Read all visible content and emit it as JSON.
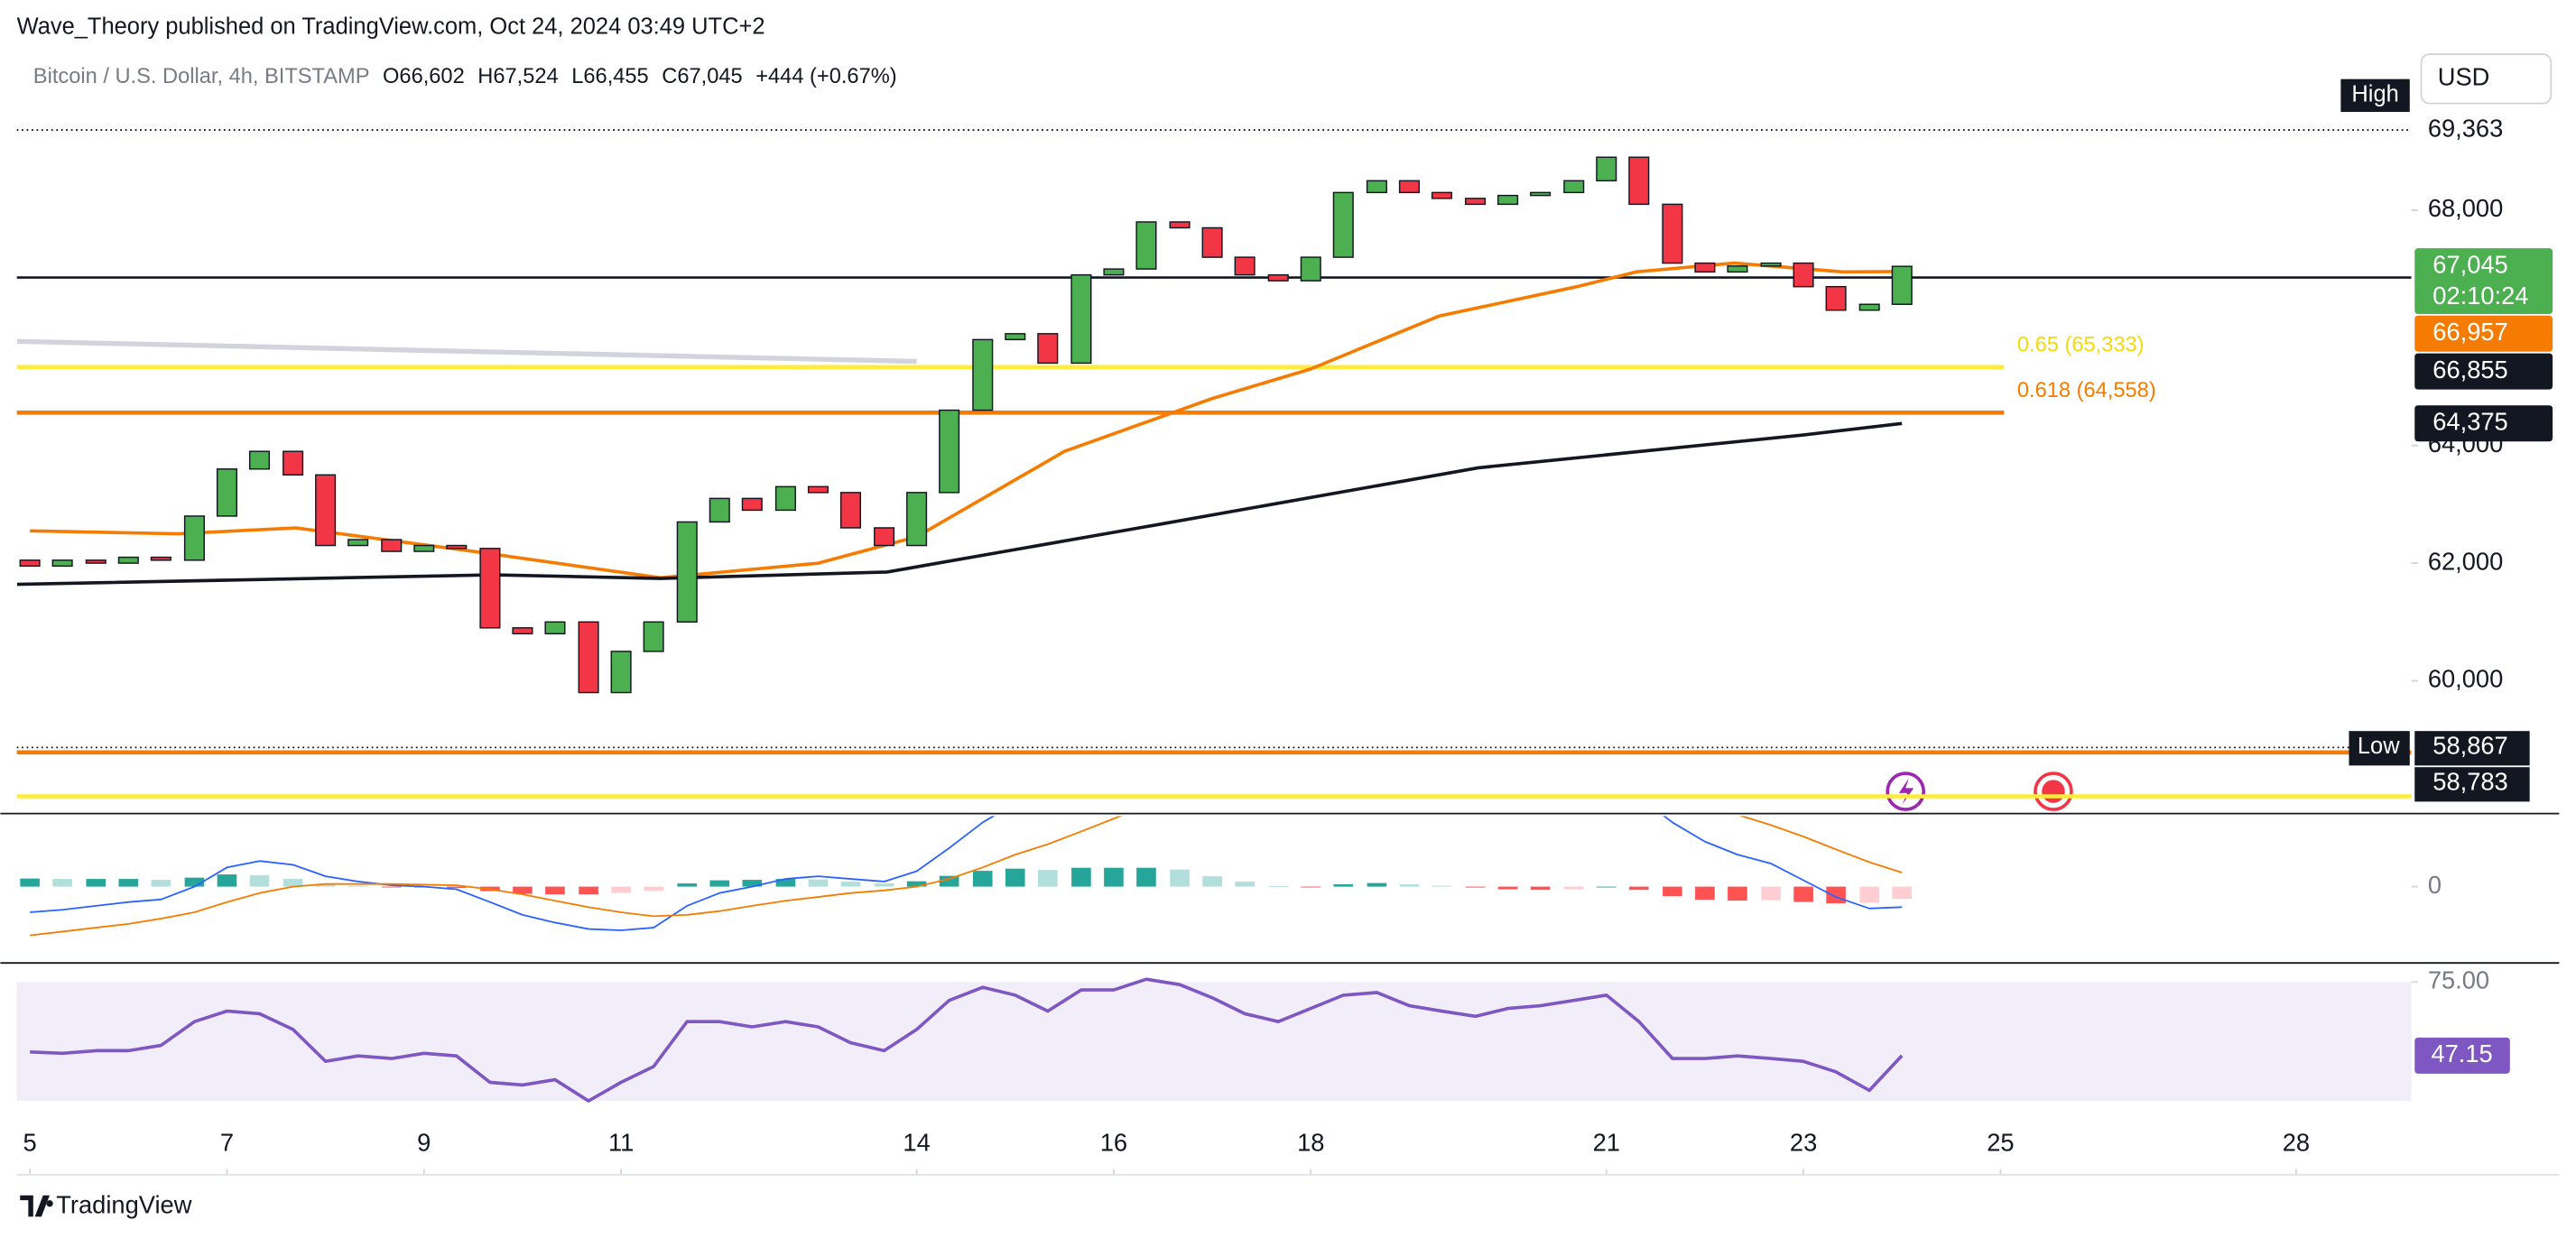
{
  "header": {
    "publisher": "Wave_Theory published on TradingView.com, Oct 24, 2024 03:49 UTC+2"
  },
  "footer": {
    "brand": "TradingView"
  },
  "chart_data": [
    {
      "type": "candlestick",
      "title": "Bitcoin / U.S. Dollar, 4h, BITSTAMP",
      "ohlc_labels": [
        "O66,602",
        "H67,524",
        "L66,455",
        "C67,045",
        "+444 (+0.67%)"
      ],
      "currency": "USD",
      "xlim": [
        4.867,
        29.17
      ],
      "xticks": [
        5,
        7,
        9,
        11,
        14,
        16,
        18,
        21,
        23,
        25,
        28
      ],
      "ylim": [
        57757,
        69898
      ],
      "yticks": [
        {
          "value": 60000,
          "label": "60,000"
        },
        {
          "value": 62000,
          "label": "62,000"
        },
        {
          "value": 64000,
          "label": "64,000"
        },
        {
          "value": 68000,
          "label": "68,000"
        }
      ],
      "grid": false,
      "up_color": "#4caf50",
      "down_color": "#f23645",
      "x": [
        5,
        5.33,
        5.67,
        6,
        6.33,
        6.67,
        7,
        7.33,
        7.67,
        8,
        8.33,
        8.67,
        9,
        9.33,
        9.67,
        10,
        10.33,
        10.67,
        11,
        11.33,
        11.67,
        12,
        12.33,
        12.67,
        13,
        13.33,
        13.67,
        14,
        14.33,
        14.67,
        15,
        15.33,
        15.67,
        16,
        16.33,
        16.67,
        17,
        17.33,
        17.67,
        18,
        18.33,
        18.67,
        19,
        19.33,
        19.67,
        20,
        20.33,
        20.67,
        21,
        21.33,
        21.67,
        22,
        22.33,
        22.67,
        23,
        23.33,
        23.67,
        24
      ],
      "open": [
        62050,
        61950,
        62050,
        62000,
        62100,
        62050,
        62800,
        63600,
        63900,
        63500,
        62300,
        62400,
        62200,
        62300,
        62250,
        60900,
        60800,
        61000,
        59800,
        60500,
        61000,
        62700,
        63100,
        62900,
        63300,
        63200,
        62600,
        62300,
        63200,
        64600,
        65800,
        65900,
        65400,
        66900,
        67000,
        67800,
        67700,
        67200,
        66900,
        66800,
        67200,
        68300,
        68500,
        68300,
        68200,
        68100,
        68250,
        68300,
        68500,
        68900,
        68100,
        67100,
        66950,
        67050,
        67100,
        66700,
        66300,
        66400
      ],
      "high": {
        "name": "High",
        "value": 69363,
        "label": "69,363"
      },
      "low": {
        "name": "Low",
        "value": 58867,
        "label": "58,867"
      },
      "close": [
        61950,
        62050,
        62000,
        62100,
        62050,
        62800,
        63600,
        63900,
        63500,
        62300,
        62400,
        62200,
        62300,
        62250,
        60900,
        60800,
        61000,
        59800,
        60500,
        61000,
        62700,
        63100,
        62900,
        63300,
        63200,
        62600,
        62300,
        63200,
        64600,
        65800,
        65900,
        65400,
        66900,
        67000,
        67800,
        67700,
        67200,
        66900,
        66800,
        67200,
        68300,
        68500,
        68300,
        68200,
        68100,
        68250,
        68300,
        68500,
        68900,
        68100,
        67100,
        66950,
        67050,
        67100,
        66700,
        66300,
        66400,
        67045
      ],
      "series": [
        {
          "color": "#f57c00",
          "x": [
            5,
            6.5,
            7.7,
            9.5,
            11.4,
            13,
            14,
            15.5,
            17,
            18,
            19.3,
            20.7,
            21.3,
            22.3,
            23.4,
            24
          ],
          "values": [
            62550,
            62500,
            62600,
            62200,
            61750,
            62000,
            62450,
            63900,
            64800,
            65300,
            66200,
            66700,
            66950,
            67100,
            66950,
            66957
          ]
        },
        {
          "color": "#131722",
          "x": [
            4.87,
            9.7,
            11.4,
            13.7,
            16.4,
            19.7,
            23,
            24
          ],
          "values": [
            61640,
            61800,
            61740,
            61850,
            62640,
            63620,
            64180,
            64375
          ]
        },
        {
          "color": "#d1d4dc",
          "x": [
            4.87,
            14
          ],
          "values": [
            65770,
            65430
          ]
        }
      ],
      "levels": [
        {
          "value": 66855,
          "color": "#131722"
        },
        {
          "value": 65333,
          "color": "#ffeb3b",
          "label": "0.65 (65,333)"
        },
        {
          "value": 64558,
          "color": "#f57c00",
          "label": "0.618 (64,558)"
        },
        {
          "value": 58783,
          "color": "#f57c00"
        },
        {
          "value": 58036,
          "color": "#ffeb3b"
        }
      ],
      "last_price": {
        "value": 67045,
        "label": "67,045",
        "countdown": "02:10:24",
        "color": "#4caf50"
      },
      "price_tags": [
        {
          "value": 66957,
          "label": "66,957",
          "color": "#f57c00"
        },
        {
          "value": 66855,
          "label": "66,855",
          "color": "#131722"
        },
        {
          "value": 64375,
          "label": "64,375",
          "color": "#131722"
        }
      ],
      "low_tag": {
        "value": 58783,
        "label": "58,783"
      }
    },
    {
      "type": "macd",
      "ylim": [
        -550,
        550
      ],
      "yticks": [
        0
      ],
      "macd_color": "#2962ff",
      "signal_color": "#f57c00",
      "histogram": [
        63,
        60,
        60,
        60,
        53,
        70,
        95,
        88,
        60,
        21,
        7,
        -4,
        -5,
        -11,
        -35,
        -56,
        -60,
        -60,
        -49,
        -32,
        25,
        49,
        53,
        60,
        56,
        39,
        25,
        42,
        84,
        123,
        140,
        130,
        147,
        147,
        147,
        133,
        81,
        39,
        4,
        -4,
        18,
        28,
        18,
        7,
        -7,
        -21,
        -25,
        -21,
        0,
        -25,
        -74,
        -102,
        -109,
        -105,
        -119,
        -130,
        -126,
        -95
      ],
      "macd": [
        -200,
        -180,
        -150,
        -120,
        -100,
        0,
        150,
        200,
        170,
        80,
        40,
        10,
        0,
        -20,
        -120,
        -220,
        -280,
        -330,
        -340,
        -320,
        -150,
        -50,
        0,
        60,
        80,
        60,
        40,
        120,
        300,
        500,
        650,
        700,
        850,
        950,
        1050,
        1100,
        1000,
        900,
        800,
        780,
        850,
        900,
        880,
        850,
        800,
        750,
        720,
        720,
        780,
        700,
        500,
        350,
        250,
        180,
        50,
        -80,
        -170,
        -160
      ],
      "signal": [
        -380,
        -350,
        -320,
        -290,
        -250,
        -200,
        -120,
        -50,
        0,
        20,
        20,
        20,
        15,
        10,
        -20,
        -60,
        -110,
        -160,
        -200,
        -230,
        -220,
        -190,
        -150,
        -110,
        -80,
        -50,
        -30,
        0,
        60,
        150,
        250,
        330,
        430,
        530,
        630,
        720,
        770,
        790,
        790,
        790,
        800,
        820,
        830,
        830,
        820,
        810,
        790,
        780,
        780,
        770,
        710,
        640,
        560,
        480,
        390,
        290,
        190,
        110
      ]
    },
    {
      "type": "rsi",
      "ylim": [
        21,
        80
      ],
      "yticks": [
        {
          "value": 75,
          "label": "75.00"
        }
      ],
      "band": [
        30,
        75
      ],
      "color": "#7e57c2",
      "values": [
        48.5,
        48,
        49,
        49,
        51,
        60,
        64,
        63,
        57,
        45,
        47,
        46,
        48,
        47,
        37,
        36,
        38,
        30,
        37,
        43,
        60,
        60,
        58,
        60,
        58,
        52,
        49,
        57,
        68,
        73,
        70,
        64,
        72,
        72,
        76,
        74,
        69,
        63,
        60,
        65,
        70,
        71,
        66,
        64,
        62,
        65,
        66,
        68,
        70,
        60,
        46,
        46,
        47,
        46,
        45,
        41,
        34,
        47.15
      ]
    }
  ]
}
